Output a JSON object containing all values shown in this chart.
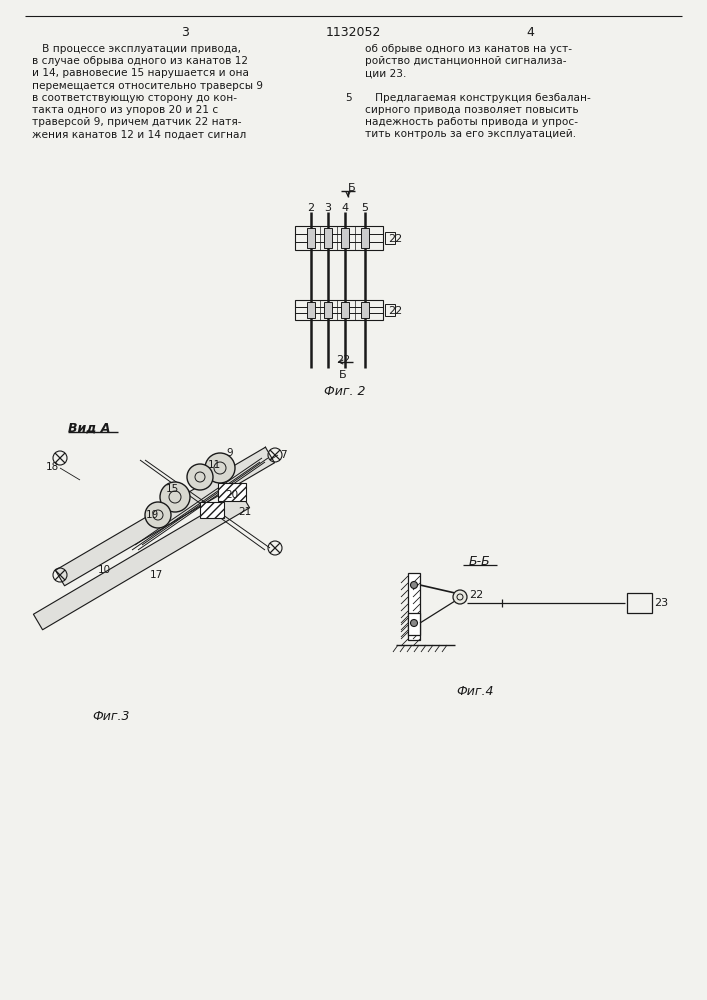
{
  "page_color": "#f2f2ee",
  "line_color": "#1a1a1a",
  "text_color": "#1a1a1a",
  "col1_text": [
    "   В процессе эксплуатации привода,",
    "в случае обрыва одного из канатов 12",
    "и 14, равновесие 15 нарушается и она",
    "перемещается относительно траверсы 9",
    "в соответствующую сторону до кон-",
    "такта одного из упоров 20 и 21 с",
    "траверсой 9, причем датчик 22 натя-",
    "жения канатов 12 и 14 подает сигнал"
  ],
  "col2_text": [
    "об обрыве одного из канатов на уст-",
    "ройство дистанционной сигнализа-",
    "ции 23.",
    "",
    "   Предлагаемая конструкция безбалан-",
    "сирного привода позволяет повысить",
    "надежность работы привода и упрос-",
    "тить контроль за его эксплуатацией."
  ]
}
